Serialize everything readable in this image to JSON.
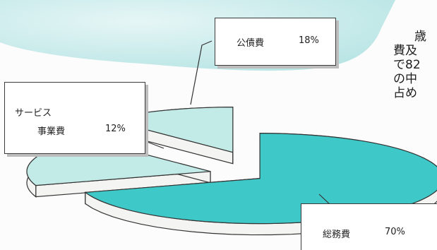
{
  "chart_data": {
    "type": "pie",
    "style": "3d-exploded",
    "categories": [
      "公債費",
      "サービス事業費",
      "総務費"
    ],
    "values": [
      18,
      12,
      70
    ],
    "unit": "%",
    "labels": [
      {
        "category": "公債費",
        "lines": [
          "公債費"
        ],
        "value_text": "18%"
      },
      {
        "category": "サービス事業費",
        "lines": [
          "サービス",
          "事業費"
        ],
        "value_text": "12%"
      },
      {
        "category": "総務費",
        "lines": [
          "総務費"
        ],
        "value_text": "70%"
      }
    ]
  },
  "colors": {
    "slice_top_light": "#c2ebe8",
    "slice_top_main": "#3ec8c7",
    "slice_side": "#f4f4f2",
    "outline": "#333333",
    "background_blob": "#c9ecec"
  },
  "side_text": [
    "歳",
    "費及",
    "で82",
    "の中",
    "占め"
  ]
}
